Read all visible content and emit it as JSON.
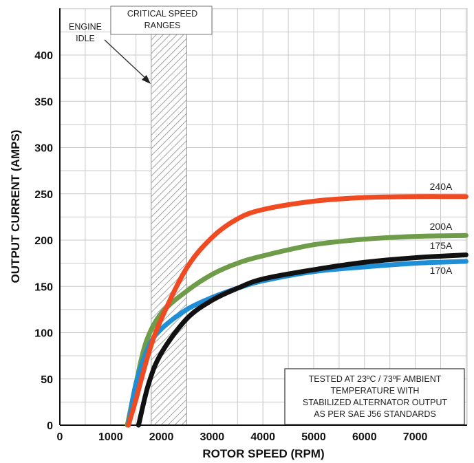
{
  "chart_data": {
    "type": "line",
    "title": "",
    "xlabel": "ROTOR SPEED (RPM)",
    "ylabel": "OUTPUT CURRENT (AMPS)",
    "xlim": [
      0,
      8000
    ],
    "ylim": [
      0,
      450
    ],
    "xticks": [
      "0",
      "1000",
      "2000",
      "3000",
      "4000",
      "5000",
      "6000",
      "7000"
    ],
    "yticks": [
      "0",
      "50",
      "100",
      "150",
      "200",
      "250",
      "300",
      "350",
      "400"
    ],
    "grid": true,
    "legend": "none",
    "series": [
      {
        "name": "240A",
        "color": "#f04a23",
        "x": [
          1350,
          1500,
          1750,
          2000,
          2500,
          3000,
          3500,
          4000,
          5000,
          6000,
          7000,
          8000
        ],
        "y": [
          0,
          28,
          78,
          115,
          170,
          203,
          223,
          233,
          242,
          246,
          247,
          247
        ]
      },
      {
        "name": "200A",
        "color": "#6f9c48",
        "x": [
          1330,
          1500,
          1700,
          2000,
          2500,
          3000,
          3500,
          4000,
          5000,
          6000,
          7000,
          8000
        ],
        "y": [
          0,
          45,
          90,
          121,
          145,
          163,
          175,
          183,
          195,
          201,
          204,
          205
        ]
      },
      {
        "name": "175A",
        "color": "#111111",
        "x": [
          1550,
          1750,
          2000,
          2500,
          3000,
          3500,
          4000,
          5000,
          6000,
          7000,
          8000
        ],
        "y": [
          0,
          45,
          78,
          115,
          135,
          148,
          158,
          168,
          176,
          181,
          184
        ]
      },
      {
        "name": "170A",
        "color": "#1e8fd6",
        "x": [
          1350,
          1500,
          1750,
          2000,
          2500,
          3000,
          3500,
          4000,
          5000,
          6000,
          7000,
          8000
        ],
        "y": [
          0,
          45,
          85,
          104,
          125,
          138,
          148,
          156,
          166,
          171,
          175,
          177
        ]
      }
    ],
    "annotations": {
      "critical_speed": {
        "label_line1": "CRITICAL SPEED",
        "label_line2": "RANGES",
        "x_range": [
          1800,
          2500
        ]
      },
      "engine_idle": {
        "label_line1": "ENGINE",
        "label_line2": "IDLE"
      },
      "test_note": [
        "TESTED AT 23ºC / 73ºF AMBIENT",
        "TEMPERATURE WITH",
        "STABILIZED ALTERNATOR OUTPUT",
        "AS PER SAE J56 STANDARDS"
      ]
    }
  }
}
